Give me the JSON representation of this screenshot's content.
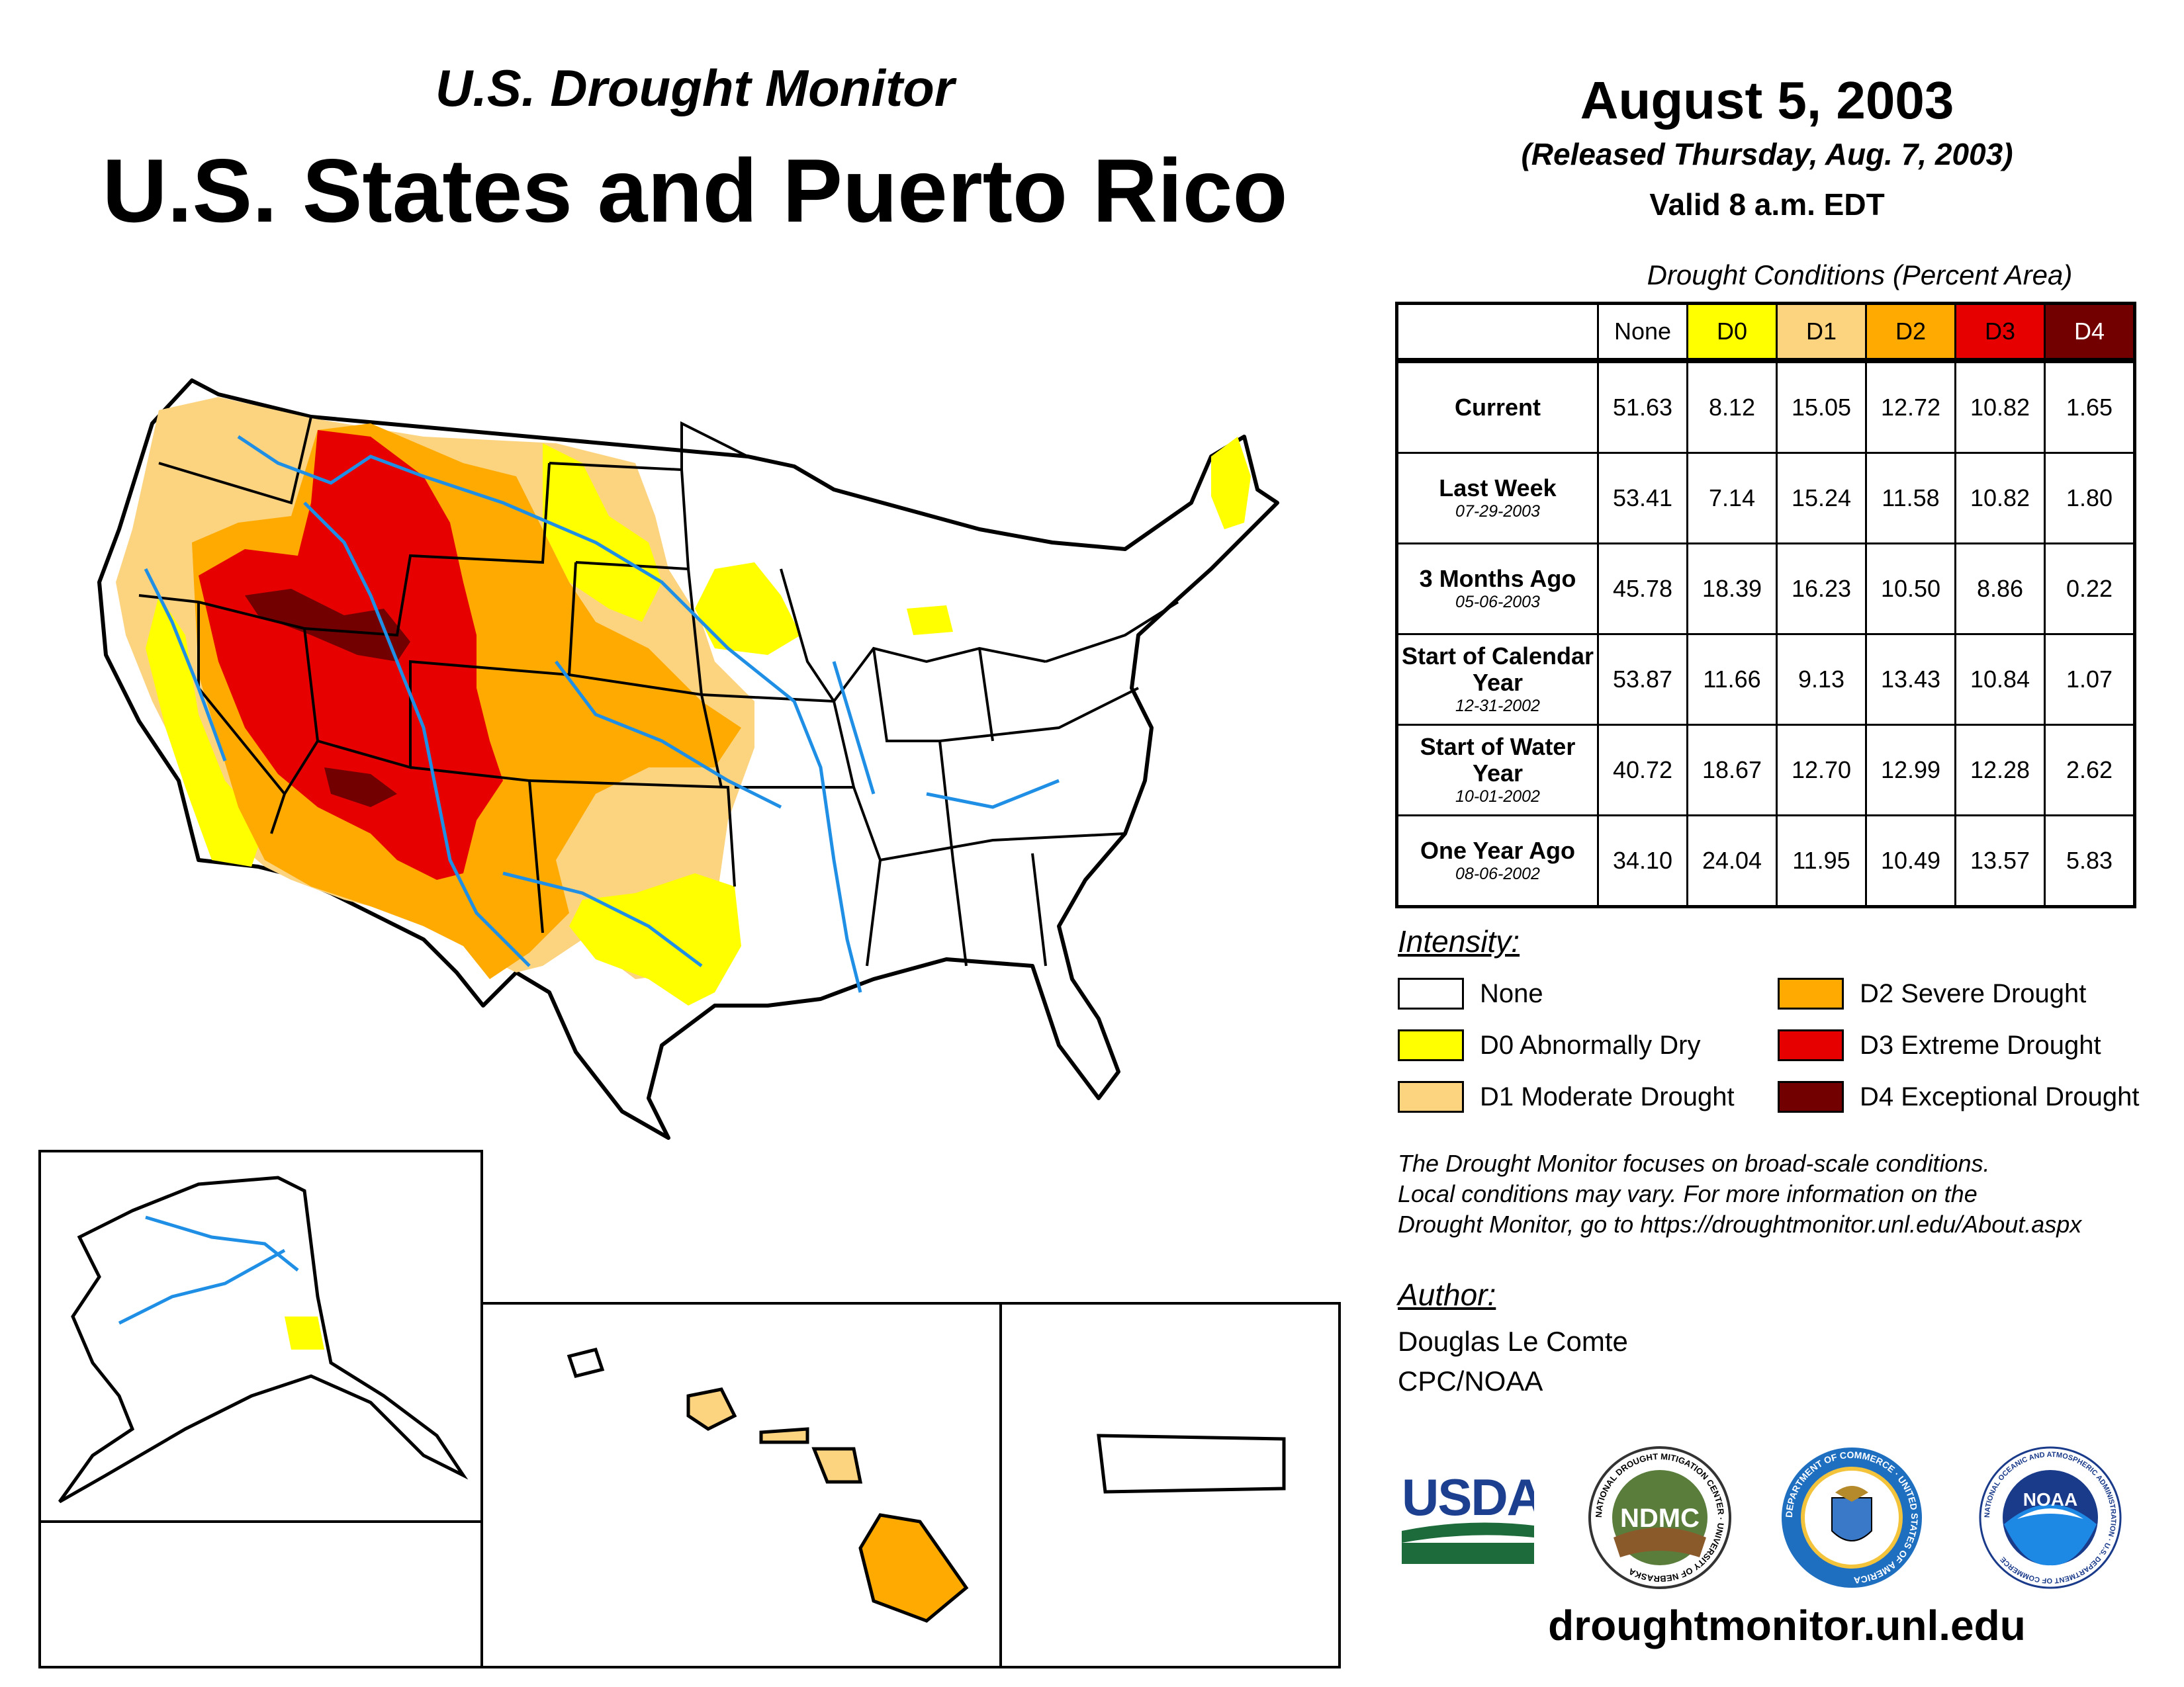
{
  "header": {
    "subtitle": "U.S. Drought Monitor",
    "title": "U.S. States and Puerto Rico",
    "date": "August 5, 2003",
    "released": "(Released Thursday, Aug. 7, 2003)",
    "valid": "Valid 8 a.m. EDT"
  },
  "table": {
    "caption": "Drought Conditions (Percent Area)",
    "columns": [
      "None",
      "D0",
      "D1",
      "D2",
      "D3",
      "D4"
    ],
    "column_colors": [
      "#ffffff",
      "#ffff00",
      "#fcd37f",
      "#ffaa00",
      "#e60000",
      "#730000"
    ],
    "rows": [
      {
        "label": "Current",
        "date": "",
        "values": [
          "51.63",
          "8.12",
          "15.05",
          "12.72",
          "10.82",
          "1.65"
        ]
      },
      {
        "label": "Last Week",
        "date": "07-29-2003",
        "values": [
          "53.41",
          "7.14",
          "15.24",
          "11.58",
          "10.82",
          "1.80"
        ]
      },
      {
        "label": "3 Months Ago",
        "date": "05-06-2003",
        "values": [
          "45.78",
          "18.39",
          "16.23",
          "10.50",
          "8.86",
          "0.22"
        ]
      },
      {
        "label": "Start of Calendar Year",
        "date": "12-31-2002",
        "values": [
          "53.87",
          "11.66",
          "9.13",
          "13.43",
          "10.84",
          "1.07"
        ]
      },
      {
        "label": "Start of Water Year",
        "date": "10-01-2002",
        "values": [
          "40.72",
          "18.67",
          "12.70",
          "12.99",
          "12.28",
          "2.62"
        ]
      },
      {
        "label": "One Year Ago",
        "date": "08-06-2002",
        "values": [
          "34.10",
          "24.04",
          "11.95",
          "10.49",
          "13.57",
          "5.83"
        ]
      }
    ]
  },
  "legend": {
    "title": "Intensity:",
    "items": [
      {
        "label": "None",
        "color": "#ffffff"
      },
      {
        "label": "D0 Abnormally Dry",
        "color": "#ffff00"
      },
      {
        "label": "D1 Moderate Drought",
        "color": "#fcd37f"
      },
      {
        "label": "D2 Severe Drought",
        "color": "#ffaa00"
      },
      {
        "label": "D3 Extreme Drought",
        "color": "#e60000"
      },
      {
        "label": "D4 Exceptional Drought",
        "color": "#730000"
      }
    ]
  },
  "disclaimer": {
    "line1": "The Drought Monitor focuses on broad-scale conditions.",
    "line2": "Local conditions may vary. For more information on the",
    "line3": "Drought Monitor, go to https://droughtmonitor.unl.edu/About.aspx"
  },
  "author": {
    "title": "Author:",
    "name": "Douglas Le Comte",
    "org": "CPC/NOAA"
  },
  "logos": {
    "usda": "USDA",
    "ndmc": "NDMC",
    "ndmc_ring": "NATIONAL DROUGHT MITIGATION CENTER · UNIVERSITY OF NEBRASKA",
    "doc_ring": "DEPARTMENT OF COMMERCE · UNITED STATES OF AMERICA",
    "noaa": "NOAA",
    "noaa_ring": "NATIONAL OCEANIC AND ATMOSPHERIC ADMINISTRATION · U.S. DEPARTMENT OF COMMERCE"
  },
  "website": "droughtmonitor.unl.edu",
  "colors": {
    "river": "#1f8fe6",
    "border": "#000000"
  }
}
